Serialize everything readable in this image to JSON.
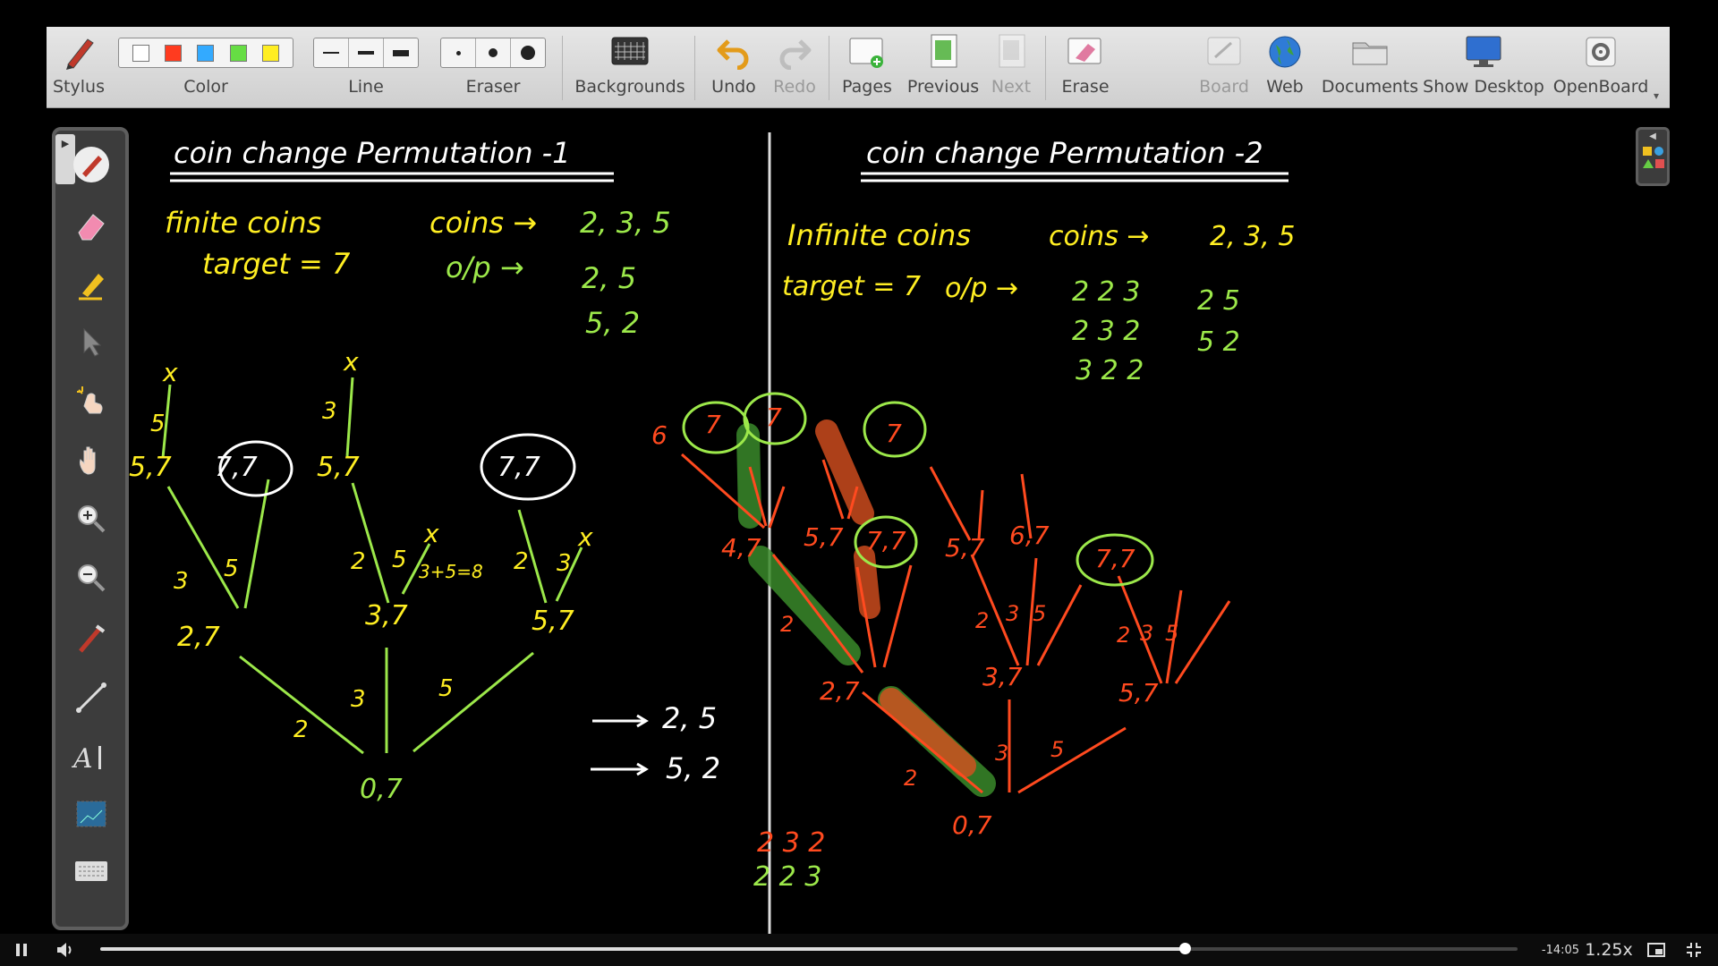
{
  "toolbar": {
    "stylus": "Stylus",
    "color": "Color",
    "line": "Line",
    "eraser": "Eraser",
    "backgrounds": "Backgrounds",
    "undo": "Undo",
    "redo": "Redo",
    "pages": "Pages",
    "previous": "Previous",
    "next": "Next",
    "erase": "Erase",
    "board": "Board",
    "web": "Web",
    "documents": "Documents",
    "show_desktop": "Show Desktop",
    "openboard": "OpenBoard",
    "colors": [
      "#ffffff",
      "#ff3b1f",
      "#33aaff",
      "#66dd44",
      "#ffee22"
    ]
  },
  "left_tools": [
    "pen-icon",
    "eraser-icon",
    "highlighter-icon",
    "pointer-icon",
    "laser-pointer-icon",
    "hand-icon",
    "zoom-in-icon",
    "zoom-out-icon",
    "capture-icon",
    "line-icon",
    "text-icon",
    "screenshot-icon",
    "keyboard-icon"
  ],
  "board": {
    "left": {
      "title": "coin change Permutation -1",
      "line1a": "finite coins",
      "line1b": "coins →",
      "coins": "2, 3, 5",
      "line2a": "target = 7",
      "line2b": "o/p →",
      "out1": "2, 5",
      "out2": "5, 2",
      "nodes": {
        "root": "0,7",
        "n27": "2,7",
        "n37": "3,7",
        "n57": "5,7",
        "a57": "5,7",
        "a77": "7,7",
        "b57": "5,7",
        "c77": "7,7"
      },
      "edges": {
        "e2": "2",
        "e3": "3",
        "e5": "5",
        "a3": "3",
        "a5": "5",
        "b2": "2",
        "b5": "5",
        "c2": "2",
        "c3": "3",
        "t5": "5",
        "t3": "3",
        "sum": "3+5=8"
      },
      "cross": "x",
      "arrow1": "2, 5",
      "arrow2": "5, 2"
    },
    "right": {
      "title": "coin change Permutation -2",
      "line1a": "Infinite coins",
      "line1b": "coins →",
      "coins": "2, 3, 5",
      "line2a": "target = 7",
      "line2b": "o/p →",
      "outs": [
        "2 2 3",
        "2 3 2",
        "3 2 2"
      ],
      "outs2": [
        "2 5",
        "5 2"
      ],
      "nodes": {
        "root": "0,7",
        "n27": "2,7",
        "n37": "3,7",
        "n57": "5,7",
        "n47": "4,7",
        "m57": "5,7",
        "m77": "7,7",
        "p57": "5,7",
        "p67": "6,7",
        "q77": "7,7",
        "t6": "6",
        "t7a": "7",
        "t7b": "7",
        "t7c": "7"
      },
      "edges": {
        "e2": "2",
        "e3": "3",
        "e5": "5",
        "f2": "2",
        "g2": "2",
        "g3": "3",
        "g5": "5",
        "h2": "2",
        "h3": "3",
        "h5": "5"
      },
      "bottom1": "2 3 2",
      "bottom2": "2 2 3"
    }
  },
  "player": {
    "time_left": "-14:05",
    "speed": "1.25x",
    "progress": 0.765
  }
}
